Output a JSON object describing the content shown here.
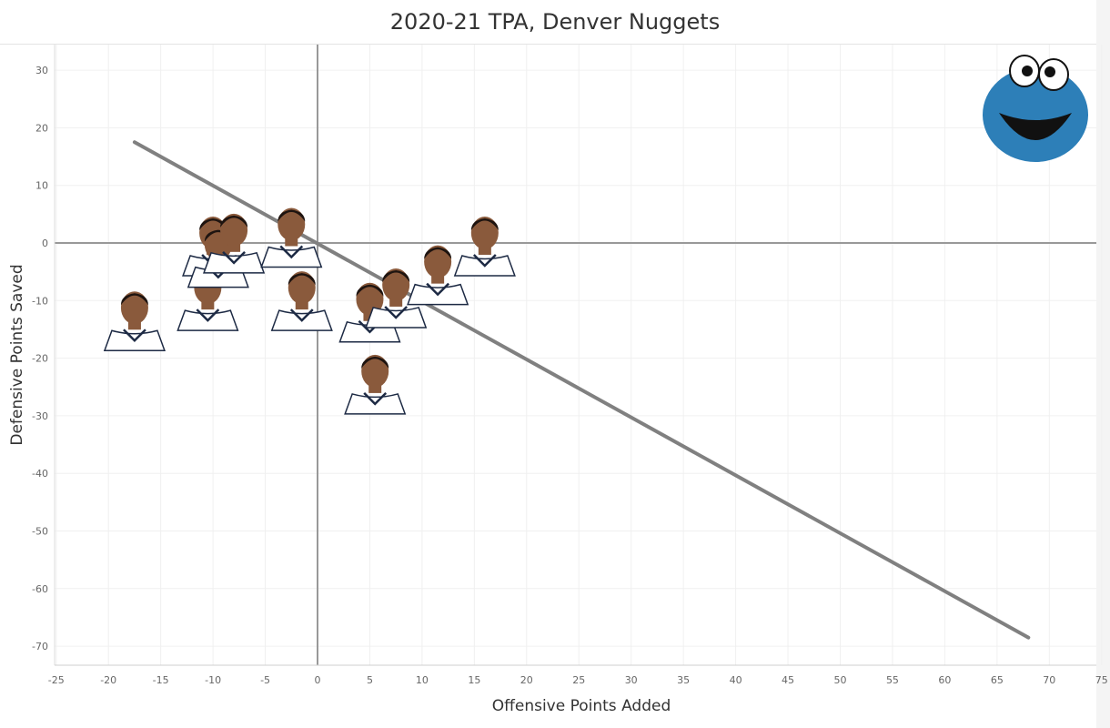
{
  "chart_data": {
    "type": "scatter",
    "title": "2020-21 TPA, Denver Nuggets",
    "xlabel": "Offensive Points Added",
    "ylabel": "Defensive Points Saved",
    "xlim": [
      -27,
      77
    ],
    "ylim": [
      -73,
      33
    ],
    "x_ticks": [
      -25,
      -20,
      -15,
      -10,
      -5,
      0,
      5,
      10,
      15,
      20,
      25,
      30,
      35,
      40,
      45,
      50,
      55,
      60,
      65,
      70,
      75
    ],
    "y_ticks": [
      30,
      20,
      10,
      0,
      -10,
      -20,
      -30,
      -40,
      -50,
      -60,
      -70
    ],
    "grid": true,
    "zero_lines": true,
    "marker": "player-headshot",
    "logo": "cookie-monster",
    "colors": {
      "trend_line": "#808080",
      "zero_line": "#999999",
      "grid": "#f0f0f0",
      "jersey": "#ffffff",
      "jersey_trim": "#1d2a44",
      "skin": "#8a5a3c",
      "hair": "#1e1410"
    },
    "points": [
      {
        "x": -17.5,
        "y": -16
      },
      {
        "x": -10.5,
        "y": -12.5
      },
      {
        "x": -10,
        "y": -3
      },
      {
        "x": -9.5,
        "y": -5
      },
      {
        "x": -8,
        "y": -2.5
      },
      {
        "x": -2.5,
        "y": -1.5
      },
      {
        "x": -1.5,
        "y": -12.5
      },
      {
        "x": 5,
        "y": -14.5
      },
      {
        "x": 7.5,
        "y": -12
      },
      {
        "x": 11.5,
        "y": -8
      },
      {
        "x": 16,
        "y": -3
      },
      {
        "x": 5.5,
        "y": -27
      }
    ],
    "trend_line": {
      "x": [
        -17.5,
        68
      ],
      "y": [
        17.5,
        -68.5
      ]
    }
  }
}
